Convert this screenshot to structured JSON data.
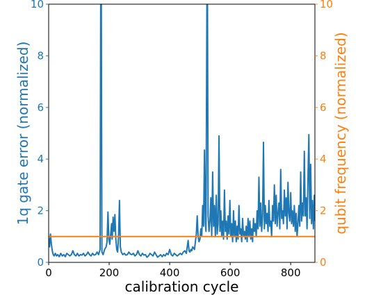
{
  "chart_data": {
    "type": "line",
    "xlabel": "calibration cycle",
    "ylabel_left": "1q gate error (normalized)",
    "ylabel_right": "qubit frequency (normalized)",
    "xlim": [
      0,
      880
    ],
    "ylim_left": [
      0,
      10
    ],
    "ylim_right": [
      0,
      10
    ],
    "x_ticks": [
      0,
      200,
      400,
      600,
      800
    ],
    "y_ticks_left": [
      0,
      2,
      4,
      6,
      8,
      10
    ],
    "y_ticks_right": [
      0,
      2,
      4,
      6,
      8,
      10
    ],
    "grid": false,
    "colors": {
      "left": "#1f77b4",
      "right": "#ff7f0e",
      "axes": "#000000"
    },
    "series": [
      {
        "axis": "left",
        "color": "#1f77b4",
        "points": [
          [
            0,
            0.95
          ],
          [
            3,
            0.6
          ],
          [
            6,
            1.1
          ],
          [
            9,
            0.7
          ],
          [
            12,
            0.45
          ],
          [
            15,
            0.3
          ],
          [
            18,
            0.25
          ],
          [
            22,
            0.35
          ],
          [
            26,
            0.25
          ],
          [
            30,
            0.3
          ],
          [
            35,
            0.22
          ],
          [
            40,
            0.35
          ],
          [
            45,
            0.25
          ],
          [
            50,
            0.3
          ],
          [
            55,
            0.22
          ],
          [
            60,
            0.35
          ],
          [
            65,
            0.3
          ],
          [
            70,
            0.25
          ],
          [
            75,
            0.3
          ],
          [
            80,
            0.45
          ],
          [
            85,
            0.3
          ],
          [
            90,
            0.25
          ],
          [
            95,
            0.35
          ],
          [
            100,
            0.25
          ],
          [
            105,
            0.3
          ],
          [
            110,
            0.28
          ],
          [
            115,
            0.35
          ],
          [
            120,
            0.25
          ],
          [
            125,
            0.3
          ],
          [
            130,
            0.4
          ],
          [
            135,
            0.3
          ],
          [
            140,
            0.25
          ],
          [
            145,
            0.35
          ],
          [
            150,
            0.28
          ],
          [
            155,
            0.3
          ],
          [
            160,
            0.4
          ],
          [
            165,
            0.3
          ],
          [
            170,
            0.5
          ],
          [
            172,
            10
          ],
          [
            174,
            10
          ],
          [
            176,
            0.4
          ],
          [
            180,
            0.3
          ],
          [
            185,
            0.5
          ],
          [
            190,
            0.6
          ],
          [
            193,
            0.8
          ],
          [
            196,
            1.95
          ],
          [
            199,
            0.9
          ],
          [
            202,
            0.7
          ],
          [
            205,
            1.1
          ],
          [
            208,
            1.5
          ],
          [
            210,
            0.9
          ],
          [
            213,
            1.75
          ],
          [
            216,
            1.2
          ],
          [
            219,
            1.85
          ],
          [
            222,
            0.9
          ],
          [
            225,
            0.5
          ],
          [
            228,
            0.4
          ],
          [
            231,
            1.0
          ],
          [
            234,
            2.4
          ],
          [
            237,
            0.6
          ],
          [
            240,
            0.4
          ],
          [
            245,
            0.3
          ],
          [
            250,
            0.35
          ],
          [
            255,
            0.28
          ],
          [
            260,
            0.3
          ],
          [
            265,
            0.4
          ],
          [
            270,
            0.32
          ],
          [
            275,
            0.3
          ],
          [
            280,
            0.35
          ],
          [
            285,
            0.25
          ],
          [
            290,
            0.3
          ],
          [
            295,
            0.45
          ],
          [
            300,
            0.3
          ],
          [
            305,
            0.25
          ],
          [
            310,
            0.35
          ],
          [
            315,
            0.28
          ],
          [
            320,
            0.3
          ],
          [
            325,
            0.2
          ],
          [
            330,
            0.25
          ],
          [
            335,
            0.35
          ],
          [
            340,
            0.3
          ],
          [
            345,
            0.25
          ],
          [
            350,
            0.4
          ],
          [
            355,
            0.3
          ],
          [
            360,
            0.2
          ],
          [
            365,
            0.25
          ],
          [
            370,
            0.3
          ],
          [
            375,
            0.22
          ],
          [
            380,
            0.3
          ],
          [
            385,
            0.25
          ],
          [
            390,
            0.35
          ],
          [
            395,
            0.3
          ],
          [
            400,
            0.5
          ],
          [
            405,
            0.3
          ],
          [
            410,
            0.25
          ],
          [
            415,
            0.35
          ],
          [
            420,
            0.3
          ],
          [
            425,
            0.25
          ],
          [
            430,
            0.3
          ],
          [
            435,
            0.35
          ],
          [
            440,
            0.3
          ],
          [
            445,
            0.4
          ],
          [
            450,
            0.45
          ],
          [
            455,
            0.35
          ],
          [
            458,
            0.6
          ],
          [
            461,
            0.85
          ],
          [
            464,
            0.45
          ],
          [
            467,
            0.4
          ],
          [
            470,
            0.5
          ],
          [
            473,
            0.45
          ],
          [
            476,
            0.6
          ],
          [
            479,
            0.55
          ],
          [
            482,
            0.5
          ],
          [
            485,
            0.8
          ],
          [
            488,
            1.1
          ],
          [
            491,
            1.8
          ],
          [
            494,
            1.0
          ],
          [
            497,
            0.8
          ],
          [
            500,
            0.9
          ],
          [
            503,
            1.3
          ],
          [
            506,
            1.0
          ],
          [
            509,
            2.2
          ],
          [
            512,
            1.4
          ],
          [
            515,
            4.35
          ],
          [
            518,
            1.5
          ],
          [
            520,
            1.2
          ],
          [
            523,
            10
          ],
          [
            525,
            10
          ],
          [
            527,
            1.8
          ],
          [
            530,
            1.2
          ],
          [
            533,
            1.6
          ],
          [
            536,
            2.5
          ],
          [
            539,
            1.0
          ],
          [
            542,
            3.5
          ],
          [
            545,
            1.4
          ],
          [
            548,
            2.2
          ],
          [
            551,
            1.0
          ],
          [
            554,
            2.6
          ],
          [
            557,
            1.1
          ],
          [
            560,
            1.5
          ],
          [
            563,
            4.9
          ],
          [
            566,
            1.2
          ],
          [
            569,
            2.0
          ],
          [
            572,
            1.0
          ],
          [
            575,
            1.6
          ],
          [
            578,
            0.9
          ],
          [
            581,
            2.8
          ],
          [
            584,
            1.2
          ],
          [
            587,
            1.6
          ],
          [
            590,
            0.9
          ],
          [
            593,
            1.8
          ],
          [
            596,
            1.1
          ],
          [
            599,
            2.4
          ],
          [
            602,
            1.0
          ],
          [
            605,
            1.5
          ],
          [
            608,
            0.8
          ],
          [
            611,
            2.0
          ],
          [
            614,
            1.0
          ],
          [
            617,
            1.6
          ],
          [
            620,
            0.8
          ],
          [
            623,
            1.4
          ],
          [
            626,
            0.9
          ],
          [
            629,
            2.2
          ],
          [
            632,
            1.1
          ],
          [
            635,
            1.3
          ],
          [
            638,
            0.8
          ],
          [
            641,
            1.7
          ],
          [
            644,
            1.0
          ],
          [
            647,
            1.2
          ],
          [
            650,
            0.9
          ],
          [
            653,
            1.4
          ],
          [
            656,
            0.8
          ],
          [
            659,
            1.7
          ],
          [
            662,
            1.0
          ],
          [
            665,
            1.6
          ],
          [
            668,
            0.9
          ],
          [
            671,
            1.3
          ],
          [
            674,
            0.8
          ],
          [
            677,
            1.7
          ],
          [
            680,
            1.2
          ],
          [
            683,
            1.5
          ],
          [
            686,
            1.0
          ],
          [
            689,
            2.0
          ],
          [
            692,
            1.3
          ],
          [
            695,
            3.3
          ],
          [
            698,
            1.4
          ],
          [
            701,
            2.3
          ],
          [
            704,
            1.2
          ],
          [
            707,
            1.8
          ],
          [
            710,
            4.65
          ],
          [
            713,
            1.3
          ],
          [
            716,
            2.2
          ],
          [
            719,
            1.5
          ],
          [
            722,
            1.9
          ],
          [
            725,
            1.2
          ],
          [
            728,
            2.4
          ],
          [
            731,
            1.4
          ],
          [
            734,
            1.6
          ],
          [
            737,
            1.0
          ],
          [
            740,
            2.2
          ],
          [
            743,
            1.6
          ],
          [
            746,
            3.0
          ],
          [
            749,
            1.5
          ],
          [
            752,
            2.6
          ],
          [
            755,
            1.4
          ],
          [
            758,
            1.9
          ],
          [
            761,
            2.3
          ],
          [
            764,
            1.3
          ],
          [
            767,
            3.6
          ],
          [
            770,
            1.7
          ],
          [
            773,
            2.0
          ],
          [
            776,
            1.5
          ],
          [
            779,
            2.8
          ],
          [
            782,
            1.8
          ],
          [
            785,
            2.5
          ],
          [
            788,
            1.3
          ],
          [
            791,
            3.1
          ],
          [
            794,
            1.9
          ],
          [
            797,
            1.6
          ],
          [
            800,
            2.7
          ],
          [
            803,
            1.5
          ],
          [
            806,
            2.0
          ],
          [
            809,
            1.4
          ],
          [
            812,
            2.2
          ],
          [
            815,
            1.2
          ],
          [
            818,
            1.9
          ],
          [
            821,
            1.0
          ],
          [
            824,
            1.5
          ],
          [
            827,
            2.2
          ],
          [
            830,
            1.4
          ],
          [
            833,
            3.5
          ],
          [
            836,
            1.6
          ],
          [
            839,
            2.3
          ],
          [
            842,
            1.8
          ],
          [
            845,
            4.3
          ],
          [
            848,
            1.8
          ],
          [
            851,
            2.5
          ],
          [
            854,
            1.3
          ],
          [
            857,
            3.2
          ],
          [
            860,
            4.95
          ],
          [
            863,
            1.7
          ],
          [
            866,
            3.8
          ],
          [
            869,
            1.5
          ],
          [
            872,
            2.4
          ],
          [
            875,
            1.3
          ],
          [
            878,
            2.6
          ],
          [
            880,
            1.6
          ]
        ]
      },
      {
        "axis": "right",
        "color": "#ff7f0e",
        "points": [
          [
            0,
            1.0
          ],
          [
            880,
            1.0
          ]
        ]
      }
    ]
  }
}
